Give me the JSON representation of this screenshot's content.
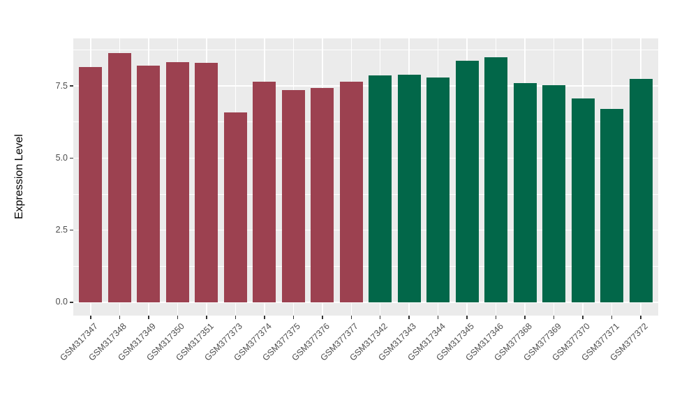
{
  "chart_data": {
    "type": "bar",
    "title": "",
    "xlabel": "",
    "ylabel": "Expression Level",
    "legend": "none",
    "grid": "horizontal major+minor and vertical major, white on grey panel",
    "panel_background": "#EBEBEB",
    "gridline_color": "#FFFFFF",
    "tick_label_color": "#4D4D4D",
    "axis_title_color": "#000000",
    "ylim": [
      -0.46,
      9.15
    ],
    "baseline": 0,
    "yticks": {
      "values": [
        0.0,
        2.5,
        5.0,
        7.5
      ],
      "labels": [
        "0.0",
        "2.5",
        "5.0",
        "7.5"
      ]
    },
    "yminor": [
      1.25,
      3.75,
      6.25,
      8.75
    ],
    "xtick_angle_deg": 45,
    "categories": [
      "GSM317347",
      "GSM317348",
      "GSM317349",
      "GSM317350",
      "GSM317351",
      "GSM377373",
      "GSM377374",
      "GSM377375",
      "GSM377376",
      "GSM377377",
      "GSM317342",
      "GSM317343",
      "GSM317344",
      "GSM317345",
      "GSM317346",
      "GSM377368",
      "GSM377369",
      "GSM377370",
      "GSM377371",
      "GSM377372"
    ],
    "values": [
      8.16,
      8.65,
      8.21,
      8.33,
      8.31,
      6.58,
      7.65,
      7.35,
      7.42,
      7.65,
      7.87,
      7.89,
      7.79,
      8.38,
      8.5,
      7.61,
      7.52,
      7.06,
      6.7,
      7.75
    ],
    "groups": [
      "A",
      "A",
      "A",
      "A",
      "A",
      "A",
      "A",
      "A",
      "A",
      "A",
      "B",
      "B",
      "B",
      "B",
      "B",
      "B",
      "B",
      "B",
      "B",
      "B"
    ],
    "palette": {
      "A": "#9C4150",
      "B": "#026749"
    }
  }
}
